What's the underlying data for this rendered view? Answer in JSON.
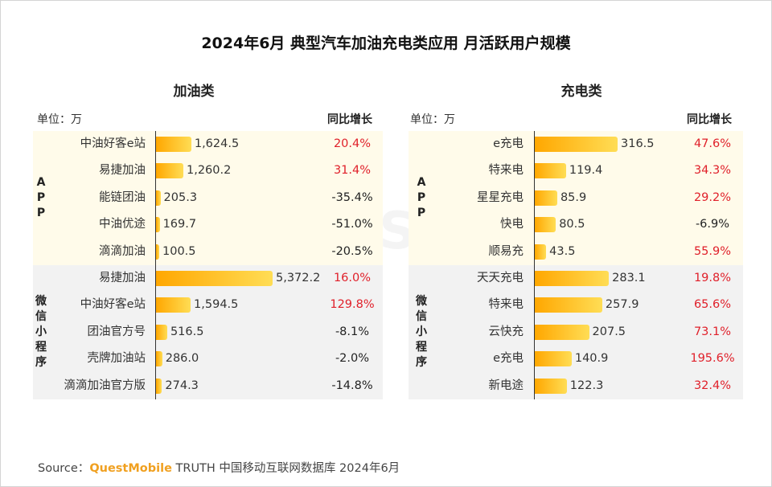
{
  "title": "2024年6月 典型汽车加油充电类应用 月活跃用户规模",
  "watermark": "QUESTMOBILE",
  "source": {
    "prefix": "Source：",
    "brand": "QuestMobile",
    "suffix": "TRUTH 中国移动互联网数据库 2024年6月"
  },
  "colors": {
    "bar_from": "#ffa700",
    "bar_to": "#ffdd55",
    "app_band": "#fffbea",
    "mini_band": "#f2f2f2",
    "positive": "#e0202a",
    "negative": "#222222"
  },
  "chart_data": [
    {
      "type": "bar",
      "orientation": "horizontal",
      "title": "加油类",
      "unit_label": "单位：万",
      "yoy_label": "同比增长",
      "groups": [
        {
          "name": "A\nP\nP",
          "categories": [
            "中油好客e站",
            "易捷加油",
            "能链团油",
            "中油优途",
            "滴滴加油"
          ],
          "values": [
            1624.5,
            1260.2,
            205.3,
            169.7,
            100.5
          ],
          "value_labels": [
            "1,624.5",
            "1,260.2",
            "205.3",
            "169.7",
            "100.5"
          ],
          "yoy": [
            "20.4%",
            "31.4%",
            "-35.4%",
            "-51.0%",
            "-20.5%"
          ]
        },
        {
          "name": "微\n信\n小\n程\n序",
          "categories": [
            "易捷加油",
            "中油好客e站",
            "团油官方号",
            "壳牌加油站",
            "滴滴加油官方版"
          ],
          "values": [
            5372.2,
            1594.5,
            516.5,
            286.0,
            274.3
          ],
          "value_labels": [
            "5,372.2",
            "1,594.5",
            "516.5",
            "286.0",
            "274.3"
          ],
          "yoy": [
            "16.0%",
            "129.8%",
            "-8.1%",
            "-2.0%",
            "-14.8%"
          ]
        }
      ],
      "xlim": [
        0,
        5372.2
      ]
    },
    {
      "type": "bar",
      "orientation": "horizontal",
      "title": "充电类",
      "unit_label": "单位：万",
      "yoy_label": "同比增长",
      "groups": [
        {
          "name": "A\nP\nP",
          "categories": [
            "e充电",
            "特来电",
            "星星充电",
            "快电",
            "顺易充"
          ],
          "values": [
            316.5,
            119.4,
            85.9,
            80.5,
            43.5
          ],
          "value_labels": [
            "316.5",
            "119.4",
            "85.9",
            "80.5",
            "43.5"
          ],
          "yoy": [
            "47.6%",
            "34.3%",
            "29.2%",
            "-6.9%",
            "55.9%"
          ]
        },
        {
          "name": "微\n信\n小\n程\n序",
          "categories": [
            "天天充电",
            "特来电",
            "云快充",
            "e充电",
            "新电途"
          ],
          "values": [
            283.1,
            257.9,
            207.5,
            140.9,
            122.3
          ],
          "value_labels": [
            "283.1",
            "257.9",
            "207.5",
            "140.9",
            "122.3"
          ],
          "yoy": [
            "19.8%",
            "65.6%",
            "73.1%",
            "195.6%",
            "32.4%"
          ]
        }
      ],
      "xlim": [
        0,
        316.5
      ]
    }
  ]
}
